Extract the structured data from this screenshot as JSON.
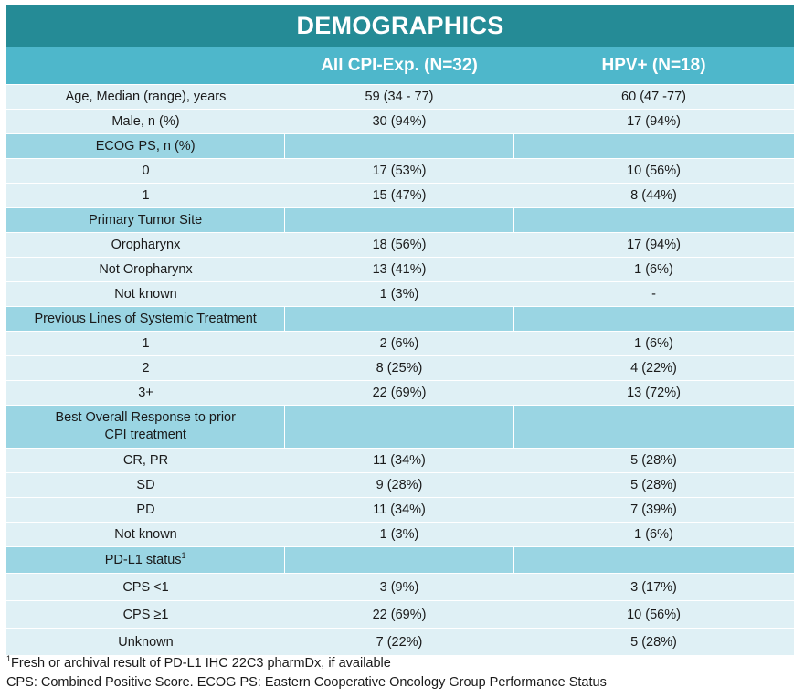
{
  "title": "DEMOGRAPHICS",
  "columns": [
    "",
    "All CPI-Exp. (N=32)",
    "HPV+ (N=18)"
  ],
  "rows": [
    {
      "type": "data",
      "label": "Age, Median (range), years",
      "all": "59 (34 - 77)",
      "hpv": "60 (47 -77)"
    },
    {
      "type": "data",
      "label": "Male, n (%)",
      "all": "30 (94%)",
      "hpv": "17 (94%)"
    },
    {
      "type": "sec",
      "label": "ECOG PS, n (%)"
    },
    {
      "type": "data",
      "label": "0",
      "all": "17 (53%)",
      "hpv": "10 (56%)"
    },
    {
      "type": "data",
      "label": "1",
      "all": "15 (47%)",
      "hpv": "8 (44%)"
    },
    {
      "type": "sec",
      "label": "Primary Tumor Site"
    },
    {
      "type": "data",
      "label": "Oropharynx",
      "all": "18 (56%)",
      "hpv": "17 (94%)"
    },
    {
      "type": "data",
      "label": "Not Oropharynx",
      "all": "13 (41%)",
      "hpv": "1 (6%)"
    },
    {
      "type": "data",
      "label": "Not known",
      "all": "1  (3%)",
      "hpv": "-"
    },
    {
      "type": "sec",
      "label": "Previous Lines of Systemic Treatment"
    },
    {
      "type": "data",
      "label": "1",
      "all": "2 (6%)",
      "hpv": "1 (6%)"
    },
    {
      "type": "data",
      "label": "2",
      "all": "8 (25%)",
      "hpv": "4 (22%)"
    },
    {
      "type": "data",
      "label": "3+",
      "all": "22 (69%)",
      "hpv": "13 (72%)"
    },
    {
      "type": "sec2",
      "label": "Best Overall Response to prior CPI treatment"
    },
    {
      "type": "data",
      "label": "CR, PR",
      "all": "11 (34%)",
      "hpv": "5 (28%)"
    },
    {
      "type": "data",
      "label": "SD",
      "all": "9 (28%)",
      "hpv": "5 (28%)"
    },
    {
      "type": "data",
      "label": "PD",
      "all": "11 (34%)",
      "hpv": "7 (39%)"
    },
    {
      "type": "data",
      "label": "Not known",
      "all": "1 (3%)",
      "hpv": "1 (6%)"
    },
    {
      "type": "sec3",
      "label": "PD-L1 status",
      "sup": "1"
    },
    {
      "type": "tall",
      "label": "CPS <1",
      "all": "3 (9%)",
      "hpv": "3 (17%)"
    },
    {
      "type": "tall",
      "label": "CPS ≥1",
      "all": "22 (69%)",
      "hpv": "10 (56%)"
    },
    {
      "type": "tall",
      "label": "Unknown",
      "all": "7 (22%)",
      "hpv": "5 (28%)"
    }
  ],
  "footnotes": {
    "note1_sup": "1",
    "note1": "Fresh or archival result of PD-L1 IHC 22C3 pharmDx, if available",
    "note2": "CPS: Combined Positive Score. ECOG PS: Eastern Cooperative Oncology Group Performance Status"
  }
}
